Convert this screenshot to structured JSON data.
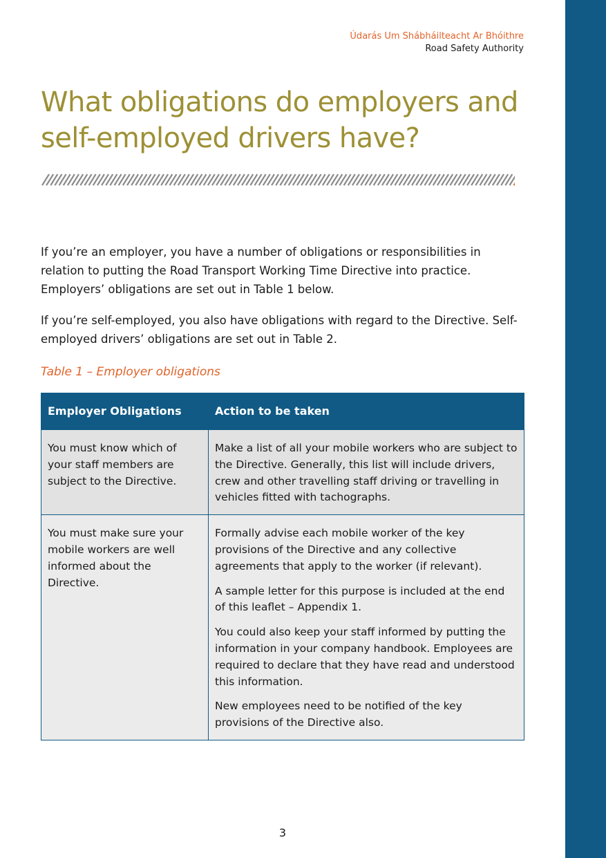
{
  "header": {
    "agency_irish": "Údarás Um Shábháilteacht Ar Bhóithre",
    "agency_english": "Road Safety Authority"
  },
  "title_lines": [
    "What obligations do employers and",
    "self-employed drivers have?"
  ],
  "intro": [
    "If you’re an employer, you have a number of obligations or responsibilities in relation to putting the Road Transport Working Time Directive into practice. Employers’ obligations are set out in Table 1 below.",
    "If you’re self-employed, you also have obligations with regard to the Directive. Self-employed drivers’ obligations are set out in Table 2."
  ],
  "table_caption": "Table 1 – Employer obligations",
  "table": {
    "headers": [
      "Employer Obligations",
      "Action to be taken"
    ],
    "rows": [
      {
        "obligation": "You must know which of your staff members are subject to the Directive.",
        "actions": [
          "Make a list of all your mobile workers who are subject to the Directive. Generally, this list will include drivers, crew and other travelling staff driving or travelling in vehicles fitted with tachographs."
        ]
      },
      {
        "obligation": "You must make sure your mobile workers are well informed about the Directive.",
        "actions": [
          "Formally advise each mobile worker of the key provisions of the Directive and any collective agreements that apply to the worker (if relevant).",
          "A sample letter for this purpose is included at the end of this leaflet – Appendix 1.",
          "You could also keep your staff informed by putting the information in your company handbook. Employees are required to declare that they have read and understood this information.",
          "New employees need to be notified of the key provisions of the Directive also."
        ]
      }
    ]
  },
  "page_number": "3",
  "colors": {
    "brand_blue": "#105a85",
    "title_olive": "#9d9035",
    "accent_orange": "#e0642c"
  }
}
